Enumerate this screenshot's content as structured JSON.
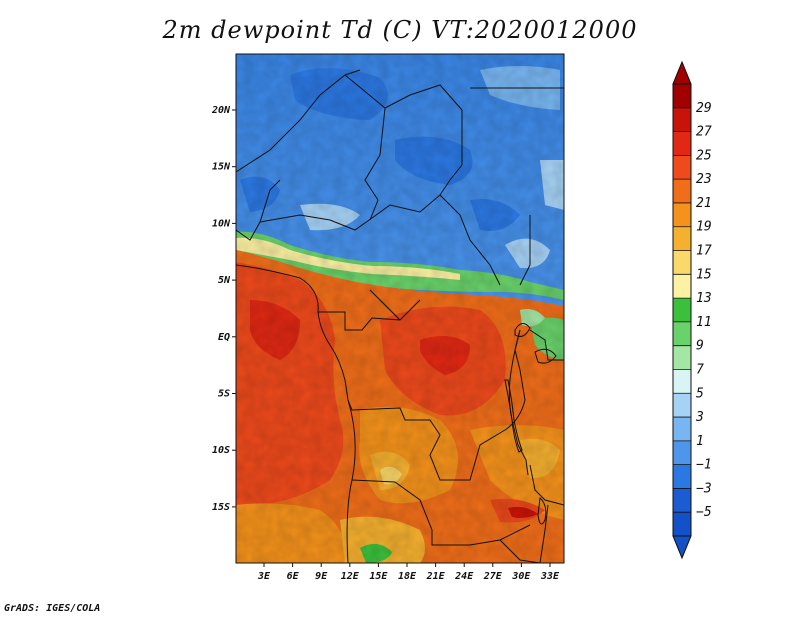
{
  "title": "2m dewpoint Td (C) VT:2020012000",
  "credit": "GrADS: IGES/COLA",
  "map": {
    "lon_ticks": [
      "3E",
      "6E",
      "9E",
      "12E",
      "15E",
      "18E",
      "21E",
      "24E",
      "27E",
      "30E",
      "33E"
    ],
    "lat_ticks": [
      "20N",
      "15N",
      "10N",
      "5N",
      "EQ",
      "5S",
      "10S",
      "15S"
    ]
  },
  "colorbar": {
    "labels": [
      "29",
      "27",
      "25",
      "23",
      "21",
      "19",
      "17",
      "15",
      "13",
      "11",
      "9",
      "7",
      "5",
      "3",
      "1",
      "−1",
      "−3",
      "−5"
    ],
    "colors": [
      "#a00000",
      "#c81408",
      "#e02814",
      "#ee4a1c",
      "#f06e1a",
      "#f4921c",
      "#f5b030",
      "#fbd86a",
      "#fdf2a4",
      "#3cc03c",
      "#6ad26a",
      "#a4e6a4",
      "#d8f4f4",
      "#a6d2f6",
      "#78b6f2",
      "#4d96ec",
      "#2c78e2",
      "#1c5cd2",
      "#1450c8"
    ]
  }
}
